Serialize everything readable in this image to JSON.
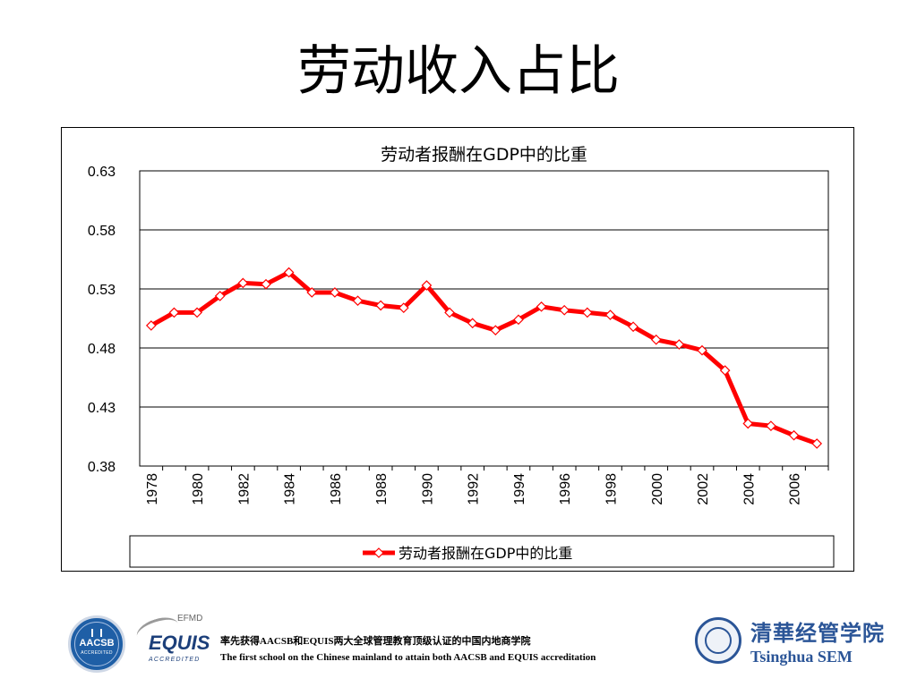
{
  "slide": {
    "title": "劳动收入占比"
  },
  "chart_data": {
    "type": "line",
    "title": "劳动者报酬在GDP中的比重",
    "xlabel": "",
    "ylabel": "",
    "ylim": [
      0.38,
      0.63
    ],
    "yticks": [
      "0.63",
      "0.58",
      "0.53",
      "0.48",
      "0.43",
      "0.38"
    ],
    "xticks": [
      "1978",
      "1980",
      "1982",
      "1984",
      "1986",
      "1988",
      "1990",
      "1992",
      "1994",
      "1996",
      "1998",
      "2000",
      "2002",
      "2004",
      "2006"
    ],
    "grid": true,
    "legend_position": "bottom",
    "line_color": "#ff0000",
    "x": [
      1978,
      1979,
      1980,
      1981,
      1982,
      1983,
      1984,
      1985,
      1986,
      1987,
      1988,
      1989,
      1990,
      1991,
      1992,
      1993,
      1994,
      1995,
      1996,
      1997,
      1998,
      1999,
      2000,
      2001,
      2002,
      2003,
      2004,
      2005,
      2006,
      2007
    ],
    "series": [
      {
        "name": "劳动者报酬在GDP中的比重",
        "values": [
          0.499,
          0.51,
          0.51,
          0.524,
          0.535,
          0.534,
          0.544,
          0.527,
          0.527,
          0.52,
          0.516,
          0.514,
          0.533,
          0.51,
          0.501,
          0.495,
          0.504,
          0.515,
          0.512,
          0.51,
          0.508,
          0.498,
          0.487,
          0.483,
          0.478,
          0.461,
          0.416,
          0.414,
          0.406,
          0.399
        ]
      }
    ]
  },
  "footer": {
    "line_cn": "率先获得AACSB和EQUIS两大全球管理教育顶级认证的中国内地商学院",
    "line_en": "The first school on the Chinese  mainland to attain both AACSB and EQUIS accreditation",
    "aacsb_logo": "AACSB",
    "aacsb_accredited": "ACCREDITED",
    "efmd_logo": "EFMD",
    "equis_logo": "EQUIS",
    "equis_accredited": "ACCREDITED",
    "sem_logo_cn": "清華经管学院",
    "sem_logo_en": "Tsinghua SEM"
  }
}
